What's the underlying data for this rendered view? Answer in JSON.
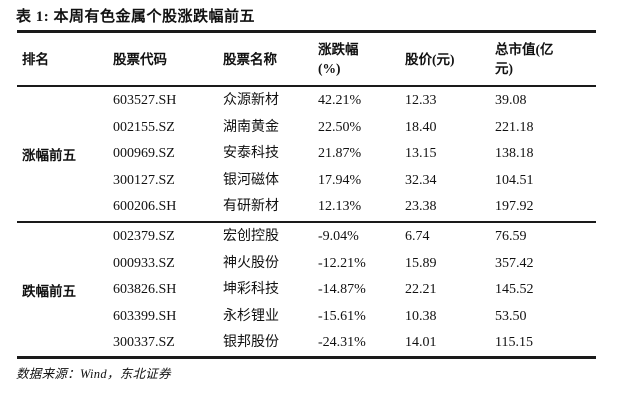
{
  "title": "表 1: 本周有色金属个股涨跌幅前五",
  "columns": {
    "rank": "排名",
    "code": "股票代码",
    "name": "股票名称",
    "change_line1": "涨跌幅",
    "change_line2": "(%)",
    "price": "股价(元)",
    "mcap_line1": "总市值(亿",
    "mcap_line2": "元)"
  },
  "groups": [
    {
      "label": "涨幅前五",
      "rows": [
        {
          "code": "603527.SH",
          "name": "众源新材",
          "change": "42.21%",
          "price": "12.33",
          "mcap": "39.08"
        },
        {
          "code": "002155.SZ",
          "name": "湖南黄金",
          "change": "22.50%",
          "price": "18.40",
          "mcap": "221.18"
        },
        {
          "code": "000969.SZ",
          "name": "安泰科技",
          "change": "21.87%",
          "price": "13.15",
          "mcap": "138.18"
        },
        {
          "code": "300127.SZ",
          "name": "银河磁体",
          "change": "17.94%",
          "price": "32.34",
          "mcap": "104.51"
        },
        {
          "code": "600206.SH",
          "name": "有研新材",
          "change": "12.13%",
          "price": "23.38",
          "mcap": "197.92"
        }
      ]
    },
    {
      "label": "跌幅前五",
      "rows": [
        {
          "code": "002379.SZ",
          "name": "宏创控股",
          "change": "-9.04%",
          "price": "6.74",
          "mcap": "76.59"
        },
        {
          "code": "000933.SZ",
          "name": "神火股份",
          "change": "-12.21%",
          "price": "15.89",
          "mcap": "357.42"
        },
        {
          "code": "603826.SH",
          "name": "坤彩科技",
          "change": "-14.87%",
          "price": "22.21",
          "mcap": "145.52"
        },
        {
          "code": "603399.SH",
          "name": "永杉锂业",
          "change": "-15.61%",
          "price": "10.38",
          "mcap": "53.50"
        },
        {
          "code": "300337.SZ",
          "name": "银邦股份",
          "change": "-24.31%",
          "price": "14.01",
          "mcap": "115.15"
        }
      ]
    }
  ],
  "footer": "数据来源：Wind，东北证券",
  "colors": {
    "text": "#111111",
    "rule": "#1a1a1a",
    "background": "#ffffff"
  }
}
